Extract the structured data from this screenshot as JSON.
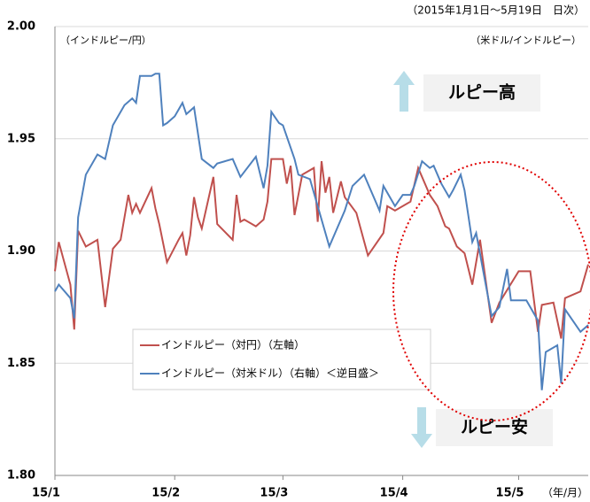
{
  "chart_data": {
    "type": "line",
    "subtitle": "（2015年1月1日～5月19日　日次）",
    "y_axis_label": "（インドルピー/円）",
    "y2_axis_label": "（米ドル/インドルピー）",
    "x_axis_label": "（年/月）",
    "annotations": [
      "ルピー高",
      "ルピー安"
    ],
    "xlim": [
      0,
      138
    ],
    "xticks": [
      {
        "value": 0,
        "label": "15/1"
      },
      {
        "value": 31,
        "label": "15/2"
      },
      {
        "value": 59,
        "label": "15/3"
      },
      {
        "value": 90,
        "label": "15/4"
      },
      {
        "value": 120,
        "label": "15/5"
      }
    ],
    "ylim": [
      1.8,
      2.0
    ],
    "yticks": [
      {
        "value": 1.8,
        "label": "1.80"
      },
      {
        "value": 1.85,
        "label": "1.85"
      },
      {
        "value": 1.9,
        "label": "1.90"
      },
      {
        "value": 1.95,
        "label": "1.95"
      },
      {
        "value": 2.0,
        "label": "2.00"
      }
    ],
    "grid": true,
    "series": [
      {
        "name": "インドルピー（対円）（左軸）",
        "color": "#c0504d",
        "x": [
          0,
          1,
          4,
          5,
          6,
          8,
          11,
          13,
          15,
          17,
          19,
          20,
          21,
          22,
          25,
          26,
          27,
          29,
          32,
          33,
          34,
          35,
          36,
          37,
          38,
          41,
          42,
          46,
          47,
          48,
          49,
          52,
          54,
          55,
          56,
          59,
          60,
          61,
          62,
          64,
          65,
          67,
          68,
          69,
          70,
          71,
          72,
          74,
          75,
          78,
          81,
          85,
          86,
          88,
          92,
          94,
          97,
          99,
          101,
          102,
          104,
          106,
          108,
          110,
          113,
          115,
          120,
          123,
          125,
          126,
          129,
          131,
          132,
          136,
          138
        ],
        "values": [
          1.891,
          1.904,
          1.885,
          1.865,
          1.909,
          1.902,
          1.905,
          1.875,
          1.901,
          1.905,
          1.925,
          1.917,
          1.921,
          1.917,
          1.928,
          1.919,
          1.912,
          1.895,
          1.905,
          1.908,
          1.898,
          1.907,
          1.924,
          1.915,
          1.91,
          1.933,
          1.912,
          1.905,
          1.925,
          1.913,
          1.914,
          1.911,
          1.914,
          1.922,
          1.941,
          1.941,
          1.93,
          1.938,
          1.916,
          1.934,
          1.935,
          1.937,
          1.913,
          1.94,
          1.926,
          1.933,
          1.917,
          1.931,
          1.924,
          1.917,
          1.898,
          1.908,
          1.92,
          1.918,
          1.922,
          1.937,
          1.925,
          1.92,
          1.911,
          1.91,
          1.902,
          1.899,
          1.885,
          1.905,
          1.868,
          1.877,
          1.891,
          1.891,
          1.864,
          1.876,
          1.877,
          1.861,
          1.879,
          1.882,
          1.894
        ]
      },
      {
        "name": "インドルピー（対米ドル）（右軸）＜逆目盛＞",
        "color": "#4f81bd",
        "x": [
          0,
          1,
          4,
          5,
          6,
          8,
          11,
          13,
          15,
          18,
          20,
          21,
          22,
          25,
          26,
          27,
          28,
          29,
          31,
          33,
          34,
          36,
          38,
          41,
          42,
          46,
          48,
          52,
          54,
          55,
          56,
          58,
          59,
          62,
          63,
          66,
          67,
          71,
          73,
          75,
          77,
          80,
          84,
          85,
          88,
          90,
          92,
          93,
          95,
          97,
          98,
          100,
          102,
          103,
          105,
          106,
          108,
          109,
          113,
          115,
          117,
          118,
          122,
          125,
          126,
          127,
          130,
          131,
          132,
          136,
          138
        ],
        "values": [
          1.882,
          1.885,
          1.879,
          1.87,
          1.915,
          1.934,
          1.943,
          1.941,
          1.956,
          1.965,
          1.968,
          1.966,
          1.978,
          1.978,
          1.979,
          1.979,
          1.956,
          1.957,
          1.96,
          1.966,
          1.961,
          1.964,
          1.941,
          1.937,
          1.939,
          1.941,
          1.933,
          1.942,
          1.928,
          1.938,
          1.962,
          1.957,
          1.956,
          1.941,
          1.934,
          1.932,
          1.926,
          1.902,
          1.91,
          1.918,
          1.929,
          1.934,
          1.918,
          1.929,
          1.92,
          1.925,
          1.925,
          1.929,
          1.94,
          1.937,
          1.938,
          1.93,
          1.924,
          1.927,
          1.934,
          1.927,
          1.904,
          1.908,
          1.871,
          1.875,
          1.892,
          1.878,
          1.878,
          1.869,
          1.838,
          1.855,
          1.858,
          1.841,
          1.874,
          1.864,
          1.867
        ]
      }
    ]
  }
}
